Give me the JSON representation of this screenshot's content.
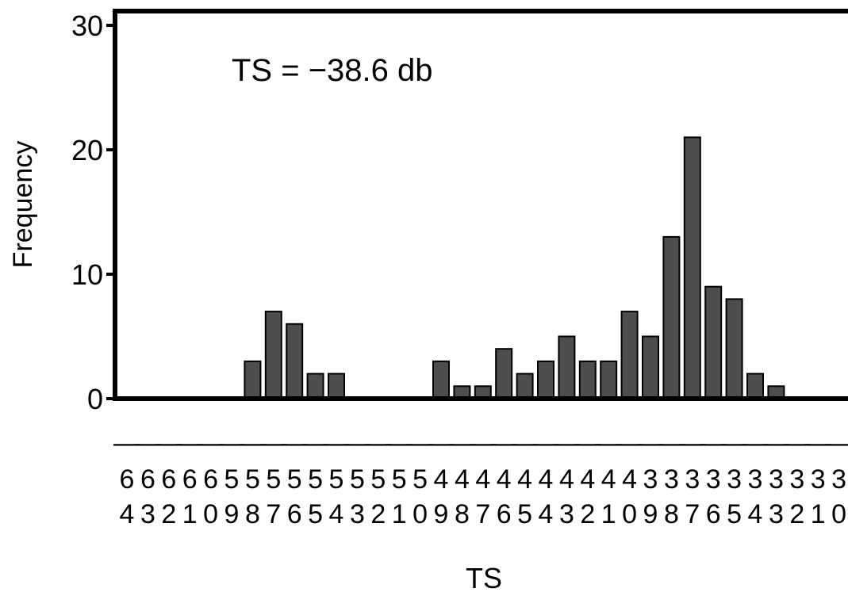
{
  "chart_data": {
    "type": "bar",
    "annotation": "TS = −38.6 db",
    "x_label": "TS",
    "y_label": "Frequency",
    "categories": [
      "-64",
      "-63",
      "-62",
      "-61",
      "-60",
      "-59",
      "-58",
      "-57",
      "-56",
      "-55",
      "-54",
      "-53",
      "-52",
      "-51",
      "-50",
      "-49",
      "-48",
      "-47",
      "-46",
      "-45",
      "-44",
      "-43",
      "-42",
      "-41",
      "-40",
      "-39",
      "-38",
      "-37",
      "-36",
      "-35",
      "-34",
      "-33",
      "-32",
      "-31",
      "-30"
    ],
    "values": [
      0,
      0,
      0,
      0,
      0,
      0,
      3,
      7,
      6,
      2,
      2,
      0,
      0,
      0,
      0,
      3,
      1,
      1,
      4,
      2,
      3,
      5,
      3,
      3,
      7,
      5,
      13,
      21,
      9,
      8,
      2,
      1,
      0,
      0,
      0
    ],
    "color": "#4d4d4d",
    "ylim": [
      0,
      30
    ],
    "yticks": [
      0,
      10,
      20,
      30
    ]
  }
}
